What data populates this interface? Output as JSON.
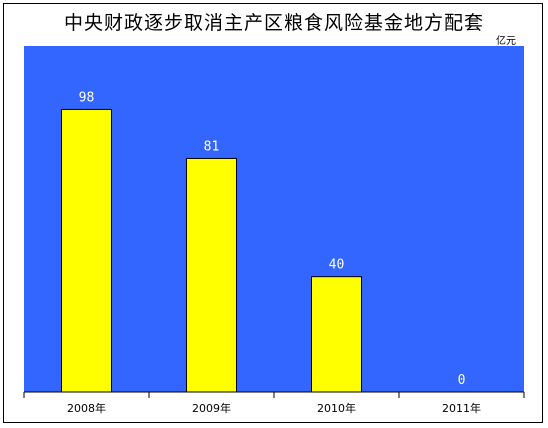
{
  "chart_data": {
    "type": "bar",
    "title": "中央财政逐步取消主产区粮食风险基金地方配套",
    "unit": "亿元",
    "categories": [
      "2008年",
      "2009年",
      "2010年",
      "2011年"
    ],
    "values": [
      98,
      81,
      40,
      0
    ],
    "value_labels": [
      "98",
      "81",
      "40",
      "0"
    ],
    "ylim": [
      0,
      120
    ],
    "grid": false,
    "legend": "none",
    "colors": {
      "plot_background": "#3366ff",
      "bar_fill": "#ffff00",
      "bar_stroke": "#000000",
      "value_label": "#ffffff"
    }
  }
}
